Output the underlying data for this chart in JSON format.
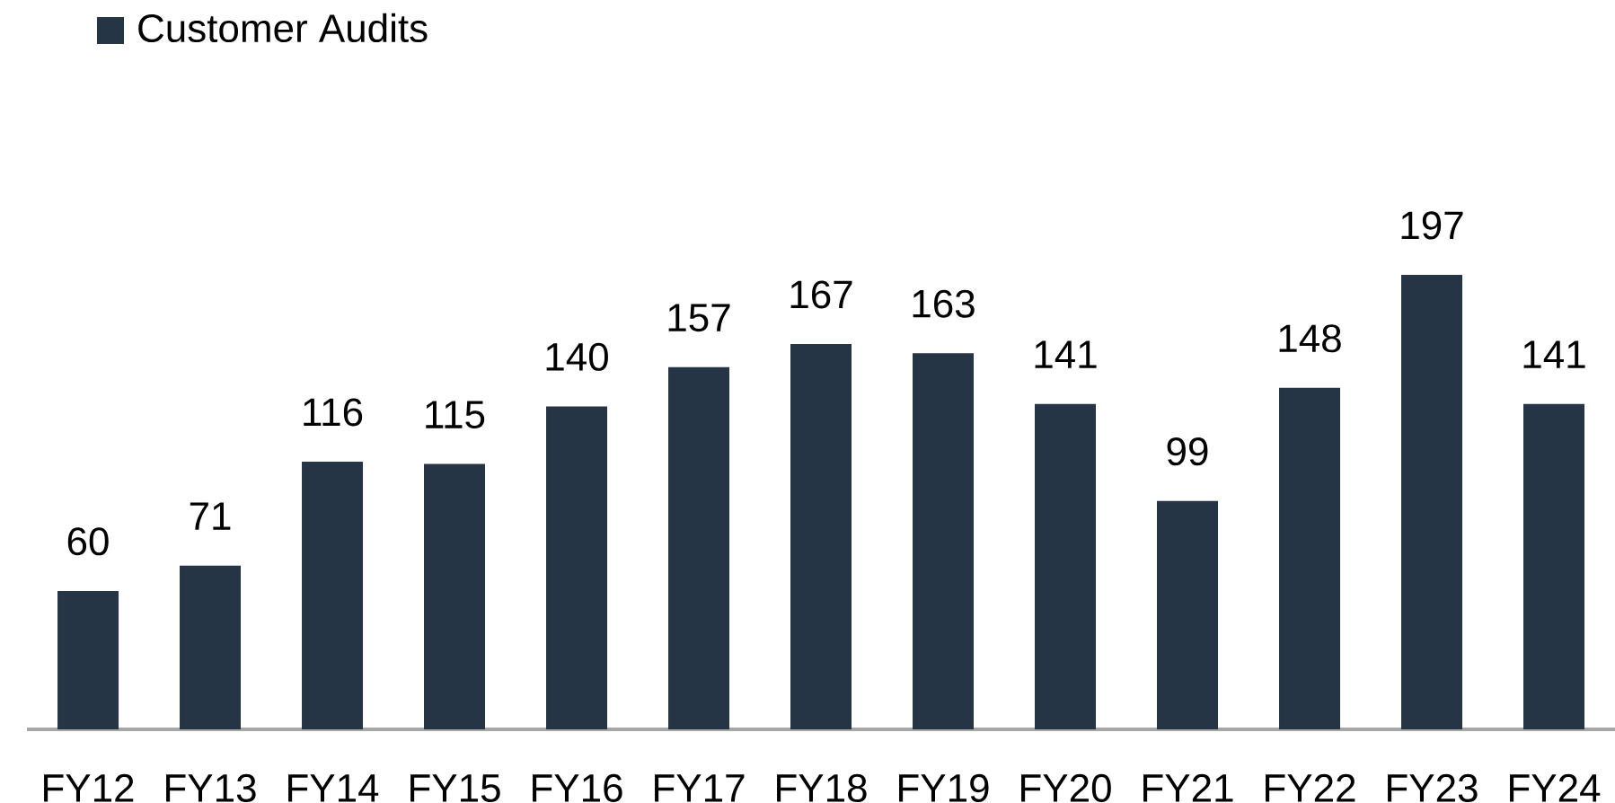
{
  "chart_data": {
    "type": "bar",
    "categories": [
      "FY12",
      "FY13",
      "FY14",
      "FY15",
      "FY16",
      "FY17",
      "FY18",
      "FY19",
      "FY20",
      "FY21",
      "FY22",
      "FY23",
      "FY24"
    ],
    "series": [
      {
        "name": "Customer Audits",
        "color": "#263545",
        "values": [
          60,
          71,
          116,
          115,
          140,
          157,
          167,
          163,
          141,
          99,
          148,
          197,
          141
        ]
      }
    ],
    "data_labels": true,
    "legend": "top left"
  }
}
